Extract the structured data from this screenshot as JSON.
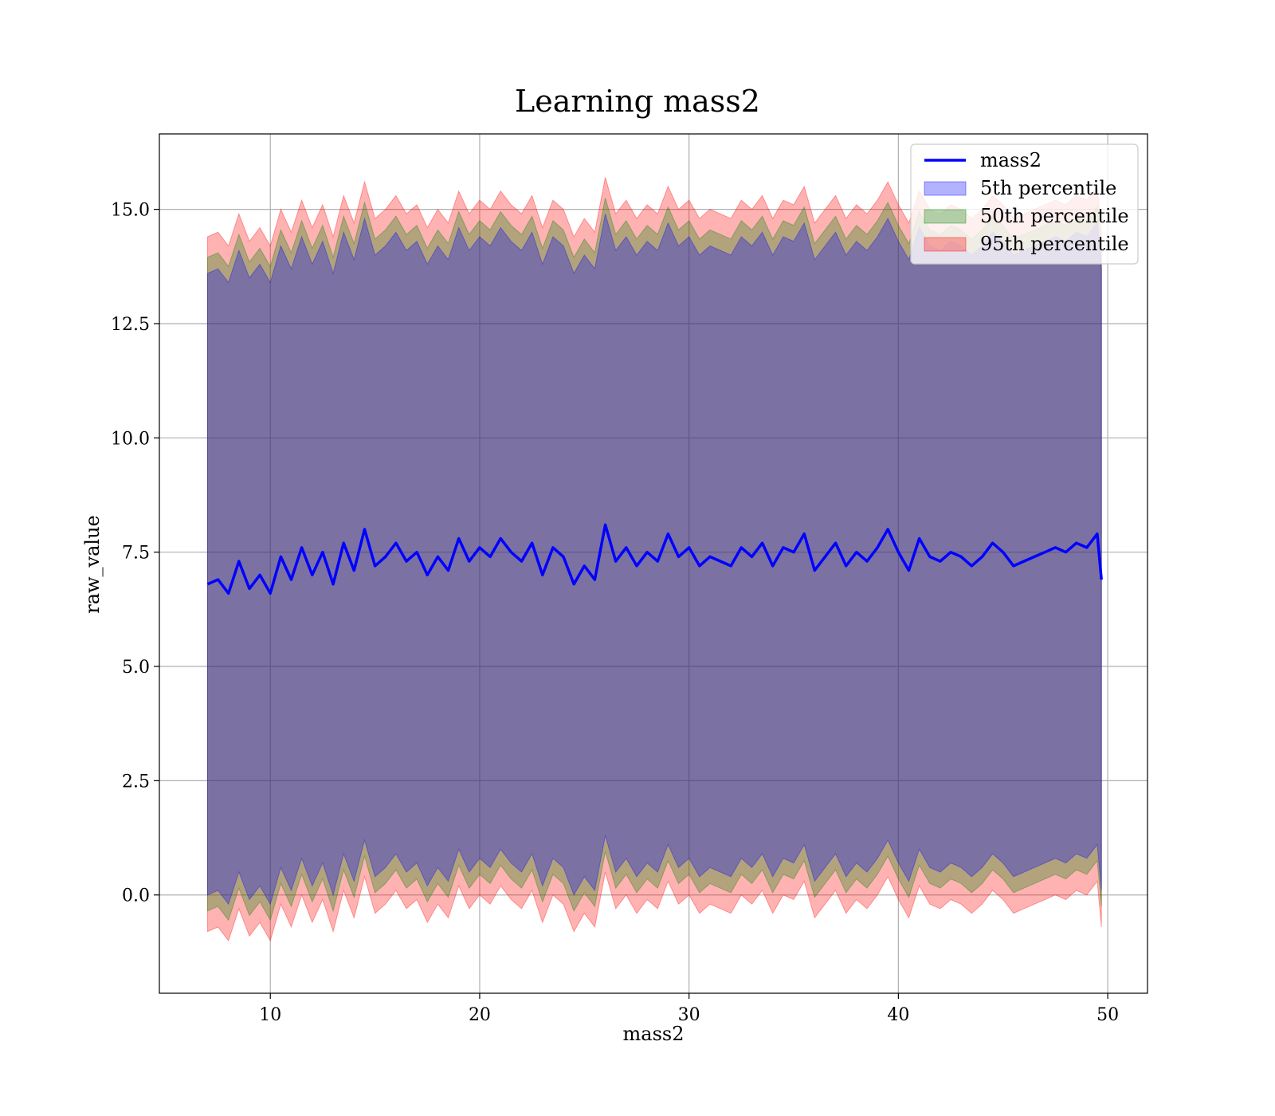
{
  "chart_data": {
    "type": "area",
    "title": "Learning mass2",
    "xlabel": "mass2",
    "ylabel": "raw_value",
    "xlim": [
      4.7,
      51.9
    ],
    "ylim": [
      -2.15,
      16.65
    ],
    "x_ticks": [
      10,
      20,
      30,
      40,
      50
    ],
    "y_ticks": [
      0.0,
      2.5,
      5.0,
      7.5,
      10.0,
      12.5,
      15.0
    ],
    "y_tick_labels": [
      "0.0",
      "2.5",
      "5.0",
      "7.5",
      "10.0",
      "12.5",
      "15.0"
    ],
    "grid": true,
    "legend_position": "top-right",
    "series": [
      {
        "name": "mass2",
        "kind": "line",
        "color": "#0000ff"
      },
      {
        "name": "5th percentile",
        "kind": "band",
        "color": "#0000ff",
        "half_width": 6.8
      },
      {
        "name": "50th percentile",
        "kind": "band",
        "color": "#008000",
        "half_width": 7.15
      },
      {
        "name": "95th percentile",
        "kind": "band",
        "color": "#ff0000",
        "half_width": 7.6
      }
    ],
    "x": [
      7.0,
      7.5,
      8.0,
      8.5,
      9.0,
      9.5,
      10.0,
      10.5,
      11.0,
      11.5,
      12.0,
      12.5,
      13.0,
      13.5,
      14.0,
      14.5,
      15.0,
      15.5,
      16.0,
      16.5,
      17.0,
      17.5,
      18.0,
      18.5,
      19.0,
      19.5,
      20.0,
      20.5,
      21.0,
      21.5,
      22.0,
      22.5,
      23.0,
      23.5,
      24.0,
      24.5,
      25.0,
      25.5,
      26.0,
      26.5,
      27.0,
      27.5,
      28.0,
      28.5,
      29.0,
      29.5,
      30.0,
      30.5,
      31.0,
      31.5,
      32.0,
      32.5,
      33.0,
      33.5,
      34.0,
      34.5,
      35.0,
      35.5,
      36.0,
      36.5,
      37.0,
      37.5,
      38.0,
      38.5,
      39.0,
      39.5,
      40.0,
      40.5,
      41.0,
      41.5,
      42.0,
      42.5,
      43.0,
      43.5,
      44.0,
      44.5,
      45.0,
      45.5,
      46.0,
      46.5,
      47.0,
      47.5,
      48.0,
      48.5,
      49.0,
      49.5,
      49.7
    ],
    "values": [
      6.8,
      6.9,
      6.6,
      7.3,
      6.7,
      7.0,
      6.6,
      7.4,
      6.9,
      7.6,
      7.0,
      7.5,
      6.8,
      7.7,
      7.1,
      8.0,
      7.2,
      7.4,
      7.7,
      7.3,
      7.5,
      7.0,
      7.4,
      7.1,
      7.8,
      7.3,
      7.6,
      7.4,
      7.8,
      7.5,
      7.3,
      7.7,
      7.0,
      7.6,
      7.4,
      6.8,
      7.2,
      6.9,
      8.1,
      7.3,
      7.6,
      7.2,
      7.5,
      7.3,
      7.9,
      7.4,
      7.6,
      7.2,
      7.4,
      7.3,
      7.2,
      7.6,
      7.4,
      7.7,
      7.2,
      7.6,
      7.5,
      7.9,
      7.1,
      7.4,
      7.7,
      7.2,
      7.5,
      7.3,
      7.6,
      8.0,
      7.5,
      7.1,
      7.8,
      7.4,
      7.3,
      7.5,
      7.4,
      7.2,
      7.4,
      7.7,
      7.5,
      7.2,
      7.3,
      7.4,
      7.5,
      7.6,
      7.5,
      7.7,
      7.6,
      7.9,
      6.9
    ]
  }
}
